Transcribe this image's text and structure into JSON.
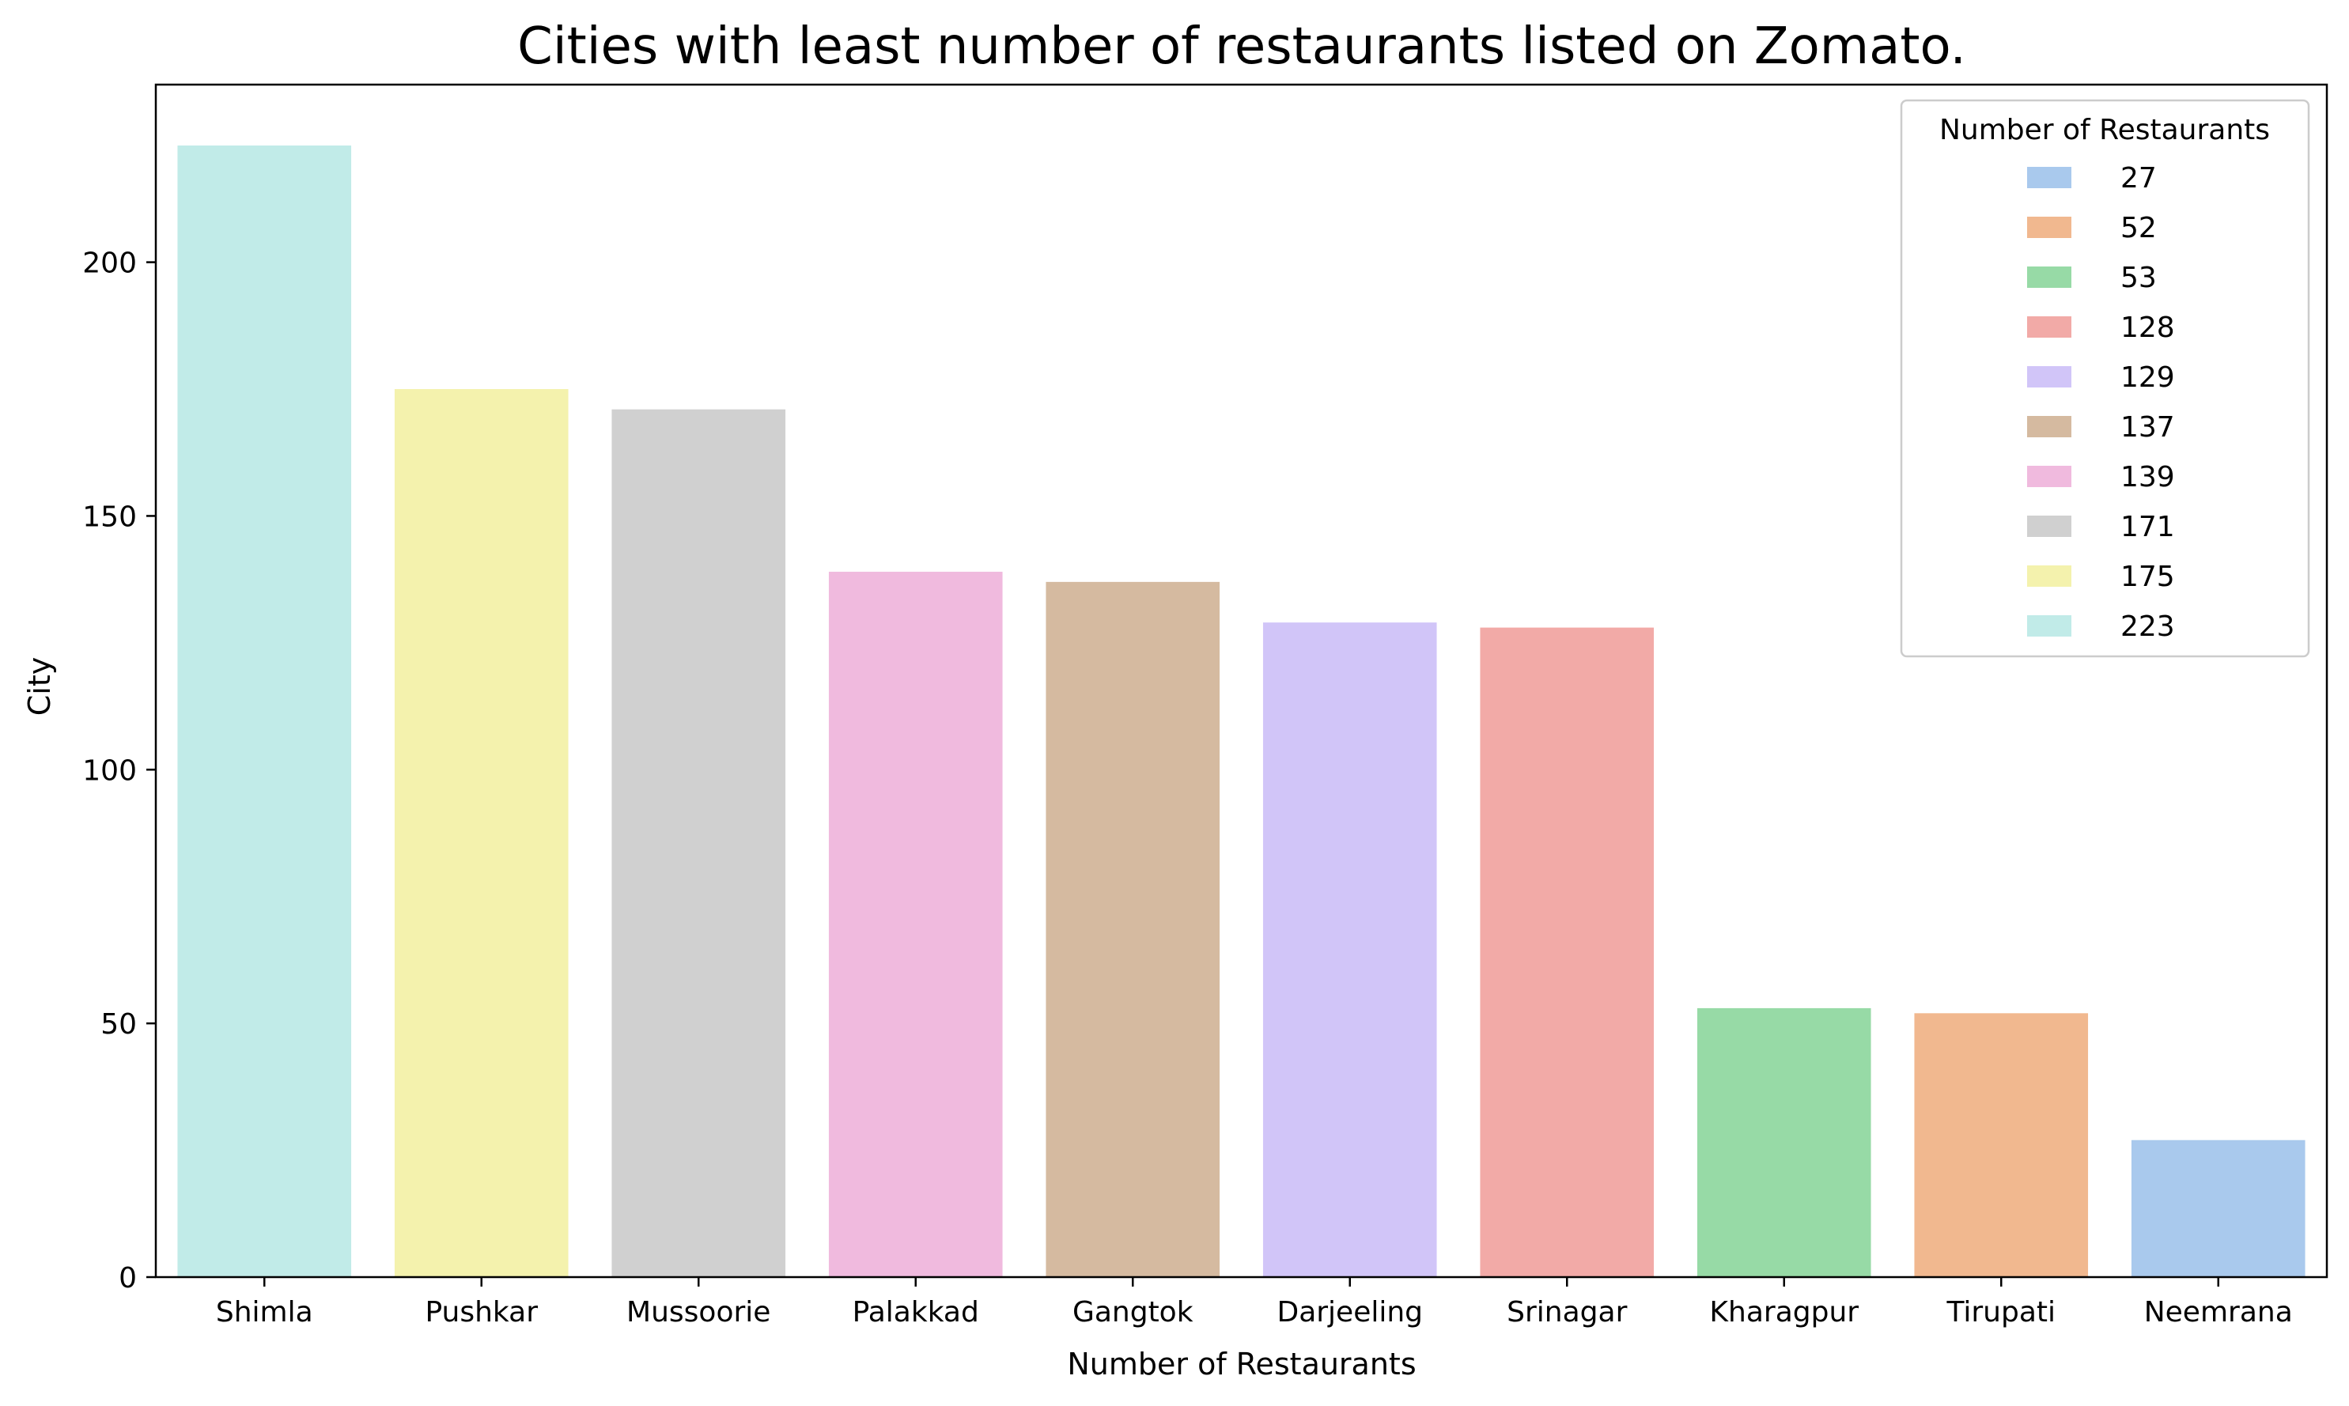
{
  "chart_data": {
    "type": "bar",
    "title": "Cities with least number of restaurants listed on Zomato.",
    "xlabel": "Number of Restaurants",
    "ylabel": "City",
    "categories": [
      "Shimla",
      "Pushkar",
      "Mussoorie",
      "Palakkad",
      "Gangtok",
      "Darjeeling",
      "Srinagar",
      "Kharagpur",
      "Tirupati",
      "Neemrana"
    ],
    "values": [
      223,
      175,
      171,
      139,
      137,
      129,
      128,
      53,
      52,
      27
    ],
    "colors": [
      "#c1ebe8",
      "#f4f2ad",
      "#d0d0d0",
      "#f0bade",
      "#d5baa0",
      "#d1c5f8",
      "#f2aaa7",
      "#97daa6",
      "#f1b88f",
      "#a9c9ed"
    ],
    "ylim": [
      0,
      235
    ],
    "yticks": [
      0,
      50,
      100,
      150,
      200
    ],
    "grid": false,
    "legend": {
      "title": "Number of Restaurants",
      "placement": "top-right",
      "entries": [
        {
          "label": "27",
          "color": "#a9c9ed"
        },
        {
          "label": "52",
          "color": "#f1b88f"
        },
        {
          "label": "53",
          "color": "#97daa6"
        },
        {
          "label": "128",
          "color": "#f2aaa7"
        },
        {
          "label": "129",
          "color": "#d1c5f8"
        },
        {
          "label": "137",
          "color": "#d5baa0"
        },
        {
          "label": "139",
          "color": "#f0bade"
        },
        {
          "label": "171",
          "color": "#d0d0d0"
        },
        {
          "label": "175",
          "color": "#f4f2ad"
        },
        {
          "label": "223",
          "color": "#c1ebe8"
        }
      ]
    }
  }
}
